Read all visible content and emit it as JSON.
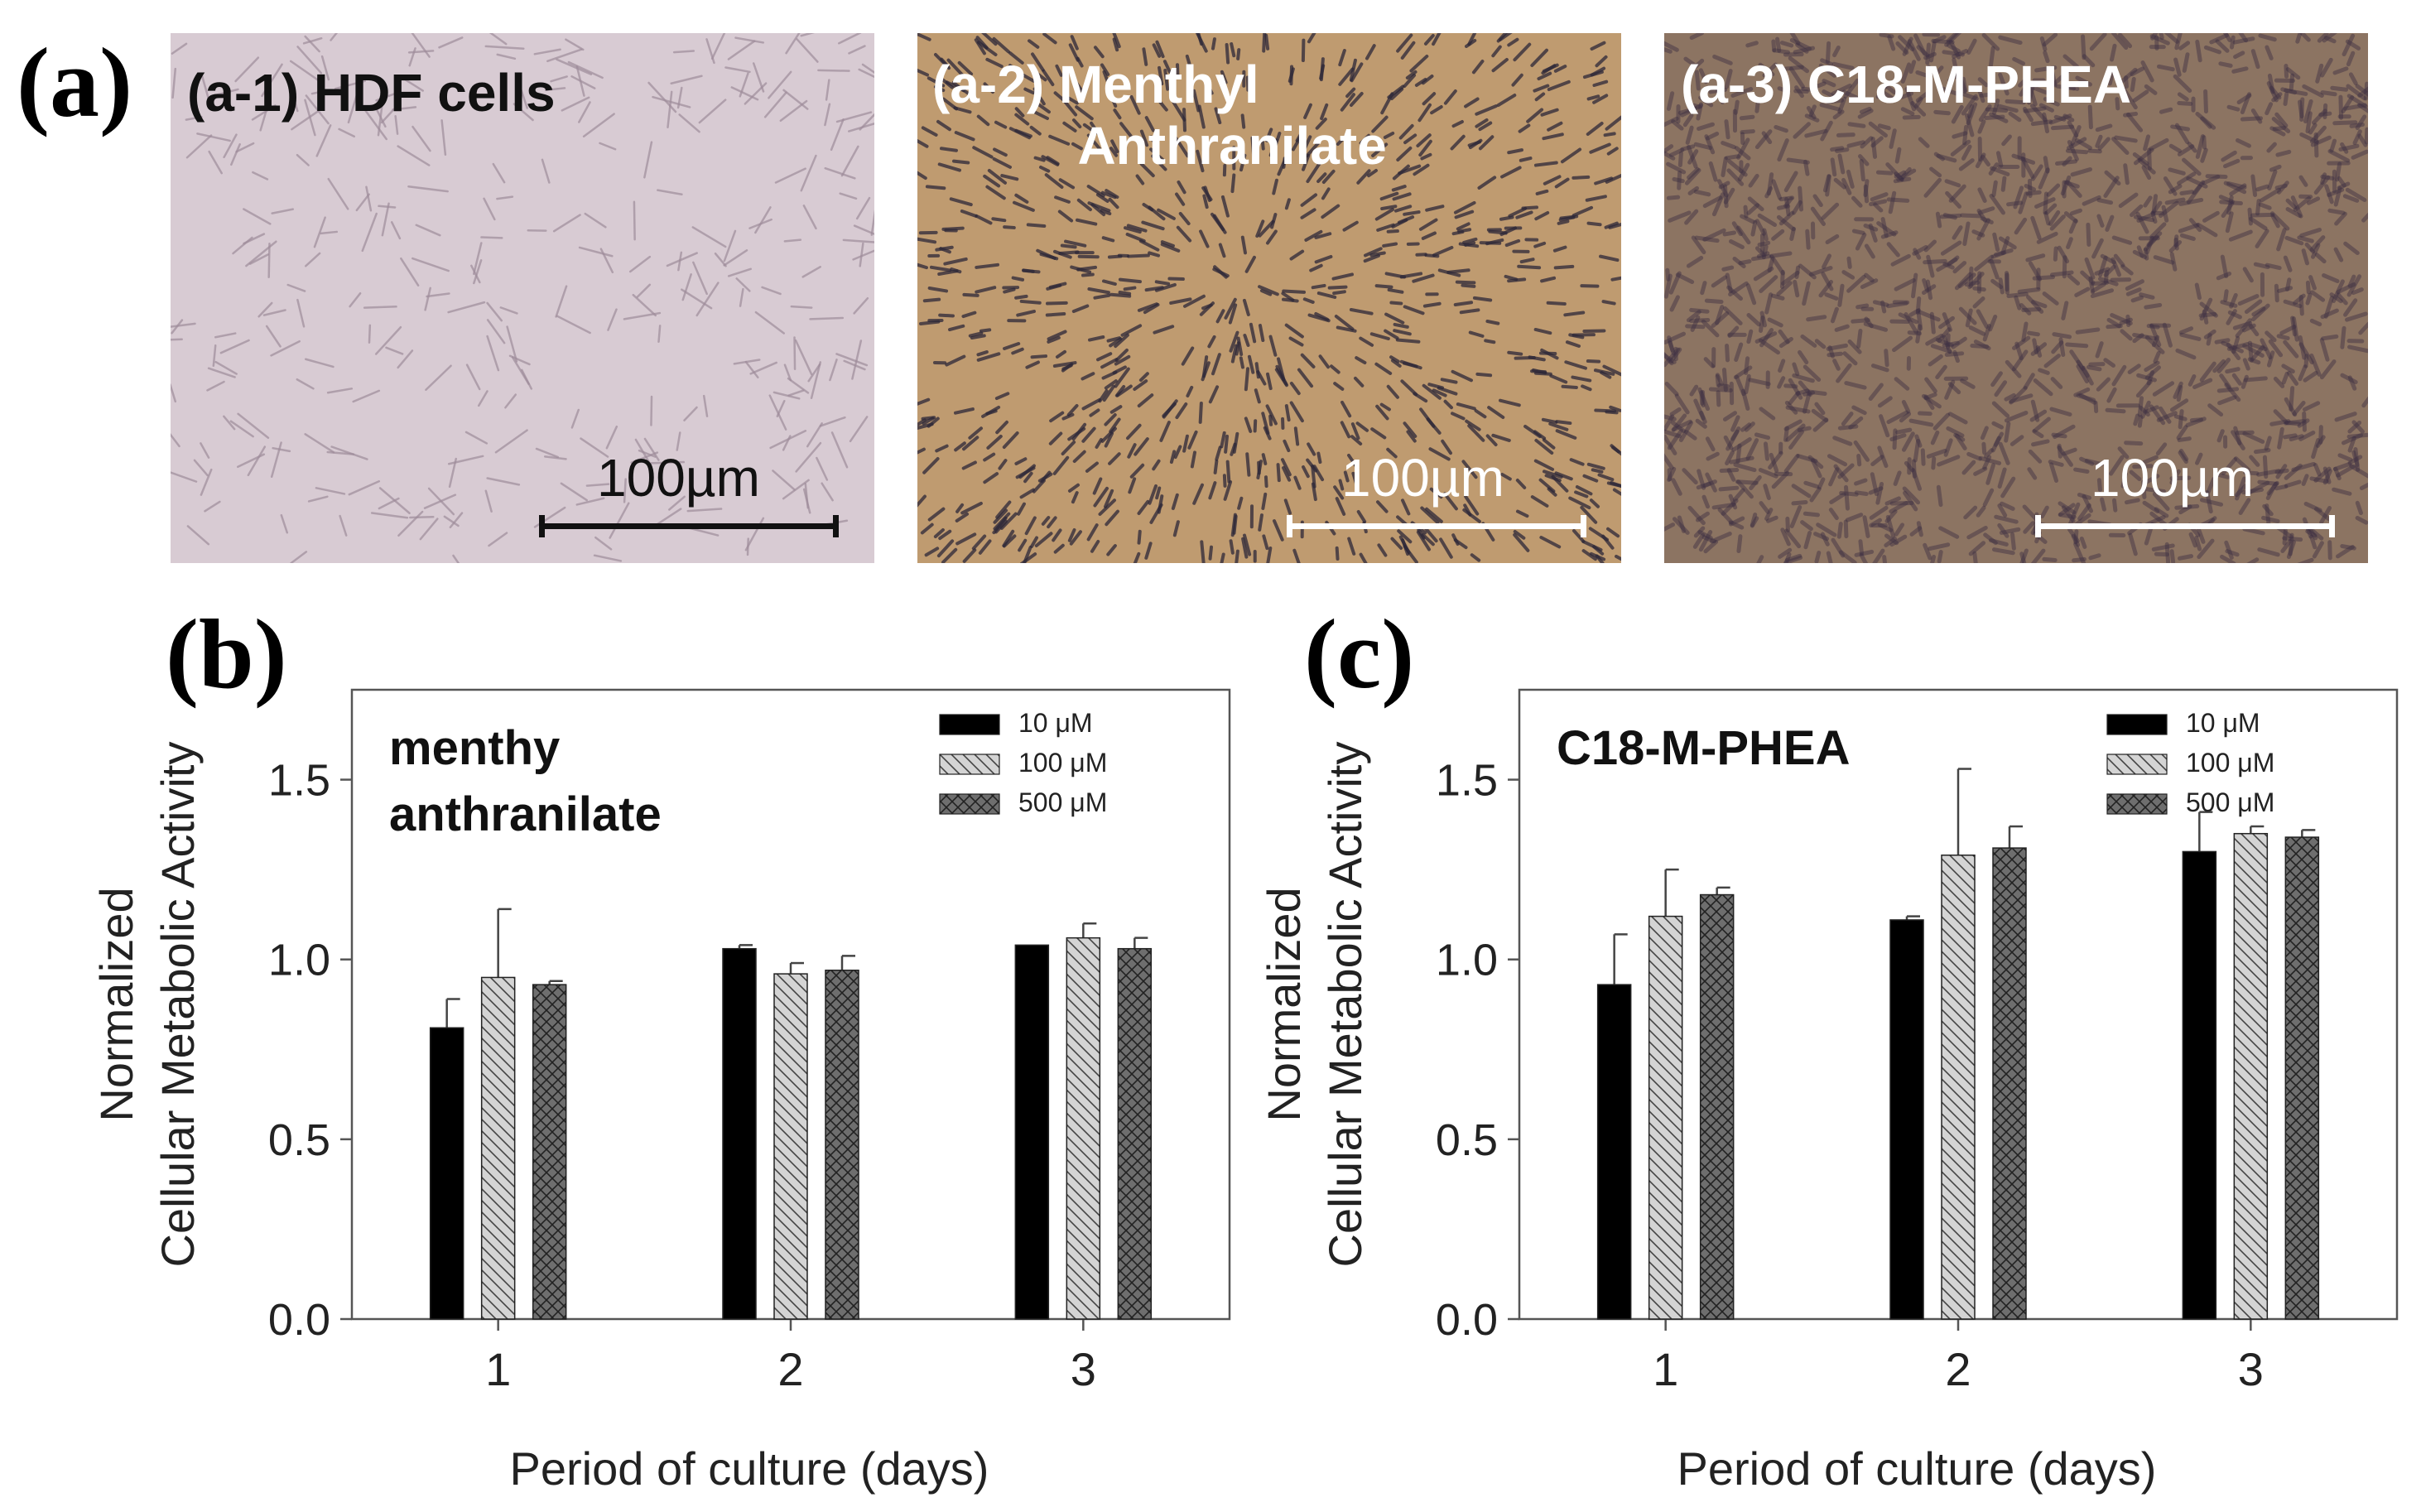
{
  "figure": {
    "panel_a": "(a)",
    "panel_b": "(b)",
    "panel_c": "(c)"
  },
  "micrographs": [
    {
      "id": "a-1",
      "title": "(a-1) HDF cells",
      "scale_label": "100µm",
      "colors": {
        "bg": "#d8cbd3",
        "cell": "#9e8c9a",
        "text": "#111111",
        "bar": "#111111"
      }
    },
    {
      "id": "a-2",
      "title": "(a-2) Menthyl\n          Anthranilate",
      "scale_label": "100µm",
      "colors": {
        "bg": "#bf9b70",
        "cell": "#2c2738",
        "text": "#ffffff",
        "bar": "#ffffff"
      }
    },
    {
      "id": "a-3",
      "title": "(a-3) C18-M-PHEA",
      "scale_label": "100µm",
      "colors": {
        "bg": "#8c7462",
        "cell": "#3c2f42",
        "text": "#ffffff",
        "bar": "#ffffff"
      }
    }
  ],
  "legend_entries": [
    "10 μM",
    "100 μM",
    "500 μM"
  ],
  "chart_data": [
    {
      "type": "bar",
      "panel": "(b)",
      "inset_label": [
        "menthy",
        "anthranilate"
      ],
      "xlabel": "Period of culture (days)",
      "ylabel": [
        "Normalized",
        "Cellular Metabolic Activity"
      ],
      "categories": [
        "1",
        "2",
        "3"
      ],
      "ylim": [
        0,
        1.75
      ],
      "yticks": [
        "0.0",
        "0.5",
        "1.0",
        "1.5"
      ],
      "series": [
        {
          "name": "10 μM",
          "values": [
            0.81,
            1.03,
            1.04
          ],
          "errors": [
            0.08,
            0.01,
            0.0
          ],
          "pattern": "solid"
        },
        {
          "name": "100 μM",
          "values": [
            0.95,
            0.96,
            1.06
          ],
          "errors": [
            0.19,
            0.03,
            0.04
          ],
          "pattern": "diag"
        },
        {
          "name": "500 μM",
          "values": [
            0.93,
            0.97,
            1.03
          ],
          "errors": [
            0.01,
            0.04,
            0.03
          ],
          "pattern": "cross"
        }
      ],
      "legend_position": "top-right",
      "grid": false
    },
    {
      "type": "bar",
      "panel": "(c)",
      "inset_label": [
        "C18-M-PHEA"
      ],
      "xlabel": "Period of culture (days)",
      "ylabel": [
        "Normalized",
        "Cellular Metabolic Activity"
      ],
      "categories": [
        "1",
        "2",
        "3"
      ],
      "ylim": [
        0,
        1.75
      ],
      "yticks": [
        "0.0",
        "0.5",
        "1.0",
        "1.5"
      ],
      "series": [
        {
          "name": "10 μM",
          "values": [
            0.93,
            1.11,
            1.3
          ],
          "errors": [
            0.14,
            0.01,
            0.11
          ],
          "pattern": "solid"
        },
        {
          "name": "100 μM",
          "values": [
            1.12,
            1.29,
            1.35
          ],
          "errors": [
            0.13,
            0.24,
            0.02
          ],
          "pattern": "diag"
        },
        {
          "name": "500 μM",
          "values": [
            1.18,
            1.31,
            1.34
          ],
          "errors": [
            0.02,
            0.06,
            0.02
          ],
          "pattern": "cross"
        }
      ],
      "legend_position": "top-right",
      "grid": false
    }
  ]
}
